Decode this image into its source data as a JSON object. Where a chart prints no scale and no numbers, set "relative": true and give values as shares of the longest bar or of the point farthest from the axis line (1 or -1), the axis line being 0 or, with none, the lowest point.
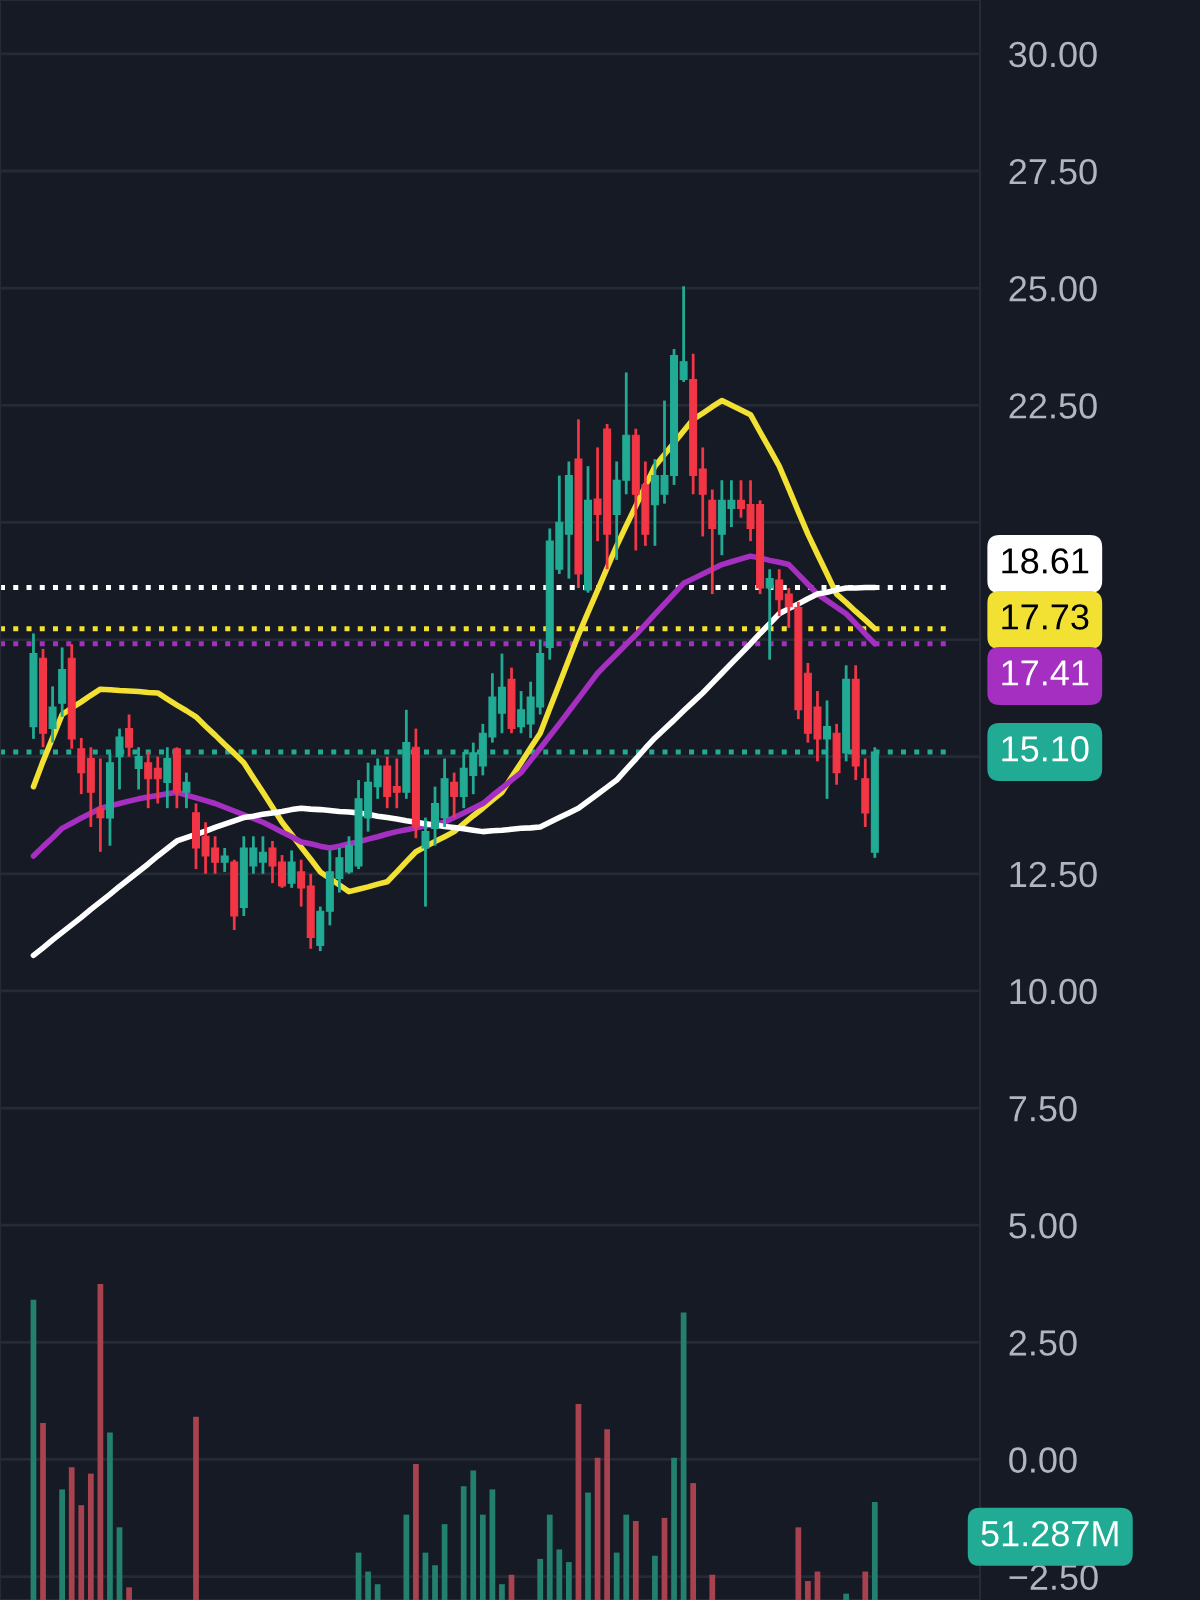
{
  "chart_data": [
    {
      "type": "candlestick",
      "categories": [
        null,
        null,
        null,
        null,
        null,
        null,
        null,
        null,
        null,
        null,
        null,
        null,
        null,
        null,
        null,
        null,
        null,
        null,
        null,
        null,
        null,
        null,
        null,
        null,
        null,
        null,
        null,
        null,
        null,
        null,
        null,
        null,
        null,
        null,
        null,
        null,
        null,
        null,
        null,
        null,
        null,
        null,
        null,
        null,
        null,
        null,
        null,
        null,
        null,
        null,
        null,
        null,
        null,
        null,
        null,
        null,
        null,
        null,
        null,
        null,
        null,
        null,
        null,
        null,
        null,
        null,
        null,
        null,
        null,
        null,
        null,
        null,
        null,
        null,
        null,
        null,
        null,
        null,
        null,
        null,
        null,
        null,
        null,
        null,
        null,
        null,
        null,
        null,
        null
      ],
      "ohlc": [
        [
          15.64,
          17.63,
          15.38,
          17.2
        ],
        [
          17.1,
          17.3,
          15.2,
          15.5
        ],
        [
          15.6,
          16.5,
          15.3,
          16.06
        ],
        [
          16.14,
          17.33,
          15.85,
          16.86
        ],
        [
          17.1,
          17.4,
          15.17,
          15.38
        ],
        [
          15.17,
          15.4,
          14.2,
          14.66
        ],
        [
          14.96,
          15.2,
          13.5,
          14.24
        ],
        [
          13.9,
          14.96,
          12.97,
          13.7
        ],
        [
          13.69,
          15.08,
          13.1,
          14.87
        ],
        [
          15.0,
          15.6,
          14.3,
          15.42
        ],
        [
          15.6,
          15.9,
          15.0,
          15.2
        ],
        [
          14.75,
          15.2,
          14.3,
          15.0
        ],
        [
          14.87,
          15.1,
          13.9,
          14.53
        ],
        [
          14.75,
          15.0,
          14.0,
          14.53
        ],
        [
          14.45,
          15.2,
          13.9,
          14.96
        ],
        [
          15.17,
          15.2,
          13.9,
          14.24
        ],
        [
          14.24,
          14.66,
          13.9,
          14.45
        ],
        [
          13.8,
          14.0,
          12.6,
          13.05
        ],
        [
          13.3,
          13.6,
          12.5,
          12.88
        ],
        [
          13.05,
          13.3,
          12.5,
          12.75
        ],
        [
          12.75,
          13.05,
          12.54,
          12.88
        ],
        [
          12.75,
          12.8,
          11.3,
          11.6
        ],
        [
          11.78,
          13.3,
          11.6,
          13.05
        ],
        [
          12.67,
          13.3,
          12.5,
          13.05
        ],
        [
          12.75,
          13.3,
          12.5,
          12.96
        ],
        [
          13.05,
          13.2,
          12.3,
          12.67
        ],
        [
          12.75,
          12.9,
          12.2,
          12.24
        ],
        [
          12.3,
          13.0,
          12.2,
          12.75
        ],
        [
          12.54,
          12.8,
          11.8,
          12.2
        ],
        [
          12.24,
          12.5,
          10.9,
          11.14
        ],
        [
          10.97,
          11.8,
          10.85,
          11.7
        ],
        [
          11.7,
          13.0,
          11.4,
          12.54
        ],
        [
          12.4,
          13.05,
          12.1,
          12.84
        ],
        [
          12.54,
          13.3,
          12.5,
          13.1
        ],
        [
          12.67,
          14.5,
          12.6,
          14.1
        ],
        [
          13.69,
          14.87,
          13.4,
          14.45
        ],
        [
          14.36,
          14.96,
          14.1,
          14.8
        ],
        [
          14.8,
          15.0,
          13.9,
          14.15
        ],
        [
          14.36,
          14.96,
          13.9,
          14.24
        ],
        [
          14.24,
          16.0,
          14.1,
          15.3
        ],
        [
          15.2,
          15.6,
          13.26,
          13.5
        ],
        [
          13.05,
          13.7,
          11.8,
          13.4
        ],
        [
          13.47,
          14.36,
          13.1,
          14.0
        ],
        [
          13.7,
          14.96,
          13.5,
          14.53
        ],
        [
          14.45,
          14.66,
          13.7,
          14.15
        ],
        [
          14.15,
          15.1,
          13.9,
          14.75
        ],
        [
          14.6,
          15.3,
          14.2,
          15.08
        ],
        [
          14.8,
          15.7,
          14.6,
          15.5
        ],
        [
          15.42,
          16.78,
          15.3,
          16.27
        ],
        [
          15.93,
          17.2,
          15.5,
          16.48
        ],
        [
          16.65,
          16.9,
          15.5,
          15.6
        ],
        [
          15.64,
          16.4,
          15.5,
          16.0
        ],
        [
          15.7,
          16.6,
          15.4,
          16.27
        ],
        [
          16.06,
          17.5,
          15.9,
          17.2
        ],
        [
          17.33,
          19.87,
          17.07,
          19.6
        ],
        [
          19.0,
          21.0,
          18.9,
          20.0
        ],
        [
          19.75,
          21.3,
          18.8,
          21.0
        ],
        [
          21.35,
          22.2,
          18.6,
          18.9
        ],
        [
          18.56,
          21.2,
          18.5,
          20.47
        ],
        [
          20.5,
          21.6,
          19.6,
          20.17
        ],
        [
          21.99,
          22.1,
          19.0,
          19.75
        ],
        [
          20.17,
          21.3,
          19.2,
          20.9
        ],
        [
          20.9,
          23.2,
          20.6,
          21.86
        ],
        [
          21.86,
          22.0,
          19.4,
          20.6
        ],
        [
          20.8,
          21.3,
          19.5,
          19.75
        ],
        [
          20.38,
          21.35,
          19.5,
          21.0
        ],
        [
          20.6,
          22.6,
          20.4,
          21.0
        ],
        [
          21.0,
          23.7,
          20.8,
          23.56
        ],
        [
          23.05,
          25.04,
          23.0,
          23.43
        ],
        [
          23.05,
          23.6,
          20.6,
          21.0
        ],
        [
          21.14,
          21.6,
          19.7,
          20.6
        ],
        [
          20.47,
          20.7,
          18.47,
          19.87
        ],
        [
          19.75,
          20.9,
          19.3,
          20.47
        ],
        [
          20.3,
          20.9,
          19.9,
          20.47
        ],
        [
          20.47,
          20.9,
          20.1,
          20.3
        ],
        [
          20.38,
          20.9,
          19.6,
          19.87
        ],
        [
          20.38,
          20.47,
          18.47,
          18.6
        ],
        [
          18.6,
          19.0,
          17.07,
          18.8
        ],
        [
          18.77,
          19.0,
          18.0,
          18.35
        ],
        [
          18.47,
          18.6,
          17.75,
          18.2
        ],
        [
          18.18,
          18.3,
          15.8,
          16.0
        ],
        [
          16.78,
          17.0,
          15.3,
          15.5
        ],
        [
          16.06,
          16.4,
          14.9,
          15.38
        ],
        [
          15.38,
          16.2,
          14.1,
          15.64
        ],
        [
          15.5,
          15.7,
          14.4,
          14.66
        ],
        [
          15.08,
          16.95,
          14.9,
          16.65
        ],
        [
          16.65,
          16.95,
          14.5,
          14.8
        ],
        [
          14.53,
          14.96,
          13.5,
          13.8
        ],
        [
          12.96,
          15.2,
          12.84,
          15.1
        ]
      ],
      "colors": [
        "#22ab94",
        "#f23645",
        "#22ab94",
        "#22ab94",
        "#f23645",
        "#f23645",
        "#f23645",
        "#f23645",
        "#22ab94",
        "#22ab94",
        "#f23645",
        "#22ab94",
        "#f23645",
        "#f23645",
        "#22ab94",
        "#f23645",
        "#22ab94",
        "#f23645",
        "#f23645",
        "#f23645",
        "#22ab94",
        "#f23645",
        "#22ab94",
        "#22ab94",
        "#22ab94",
        "#f23645",
        "#f23645",
        "#22ab94",
        "#f23645",
        "#f23645",
        "#22ab94",
        "#22ab94",
        "#22ab94",
        "#22ab94",
        "#22ab94",
        "#22ab94",
        "#22ab94",
        "#f23645",
        "#f23645",
        "#22ab94",
        "#f23645",
        "#22ab94",
        "#22ab94",
        "#22ab94",
        "#f23645",
        "#22ab94",
        "#22ab94",
        "#22ab94",
        "#22ab94",
        "#22ab94",
        "#f23645",
        "#22ab94",
        "#22ab94",
        "#22ab94",
        "#22ab94",
        "#22ab94",
        "#22ab94",
        "#f23645",
        "#22ab94",
        "#f23645",
        "#f23645",
        "#22ab94",
        "#22ab94",
        "#f23645",
        "#f23645",
        "#22ab94",
        "#22ab94",
        "#22ab94",
        "#22ab94",
        "#f23645",
        "#f23645",
        "#f23645",
        "#22ab94",
        "#22ab94",
        "#f23645",
        "#f23645",
        "#f23645",
        "#22ab94",
        "#f23645",
        "#f23645",
        "#f23645",
        "#f23645",
        "#f23645",
        "#22ab94",
        "#f23645",
        "#22ab94",
        "#f23645",
        "#f23645",
        "#22ab94"
      ],
      "series": [
        {
          "type": "line",
          "color": "#f2e033",
          "values": [
            14.36,
            14.9,
            15.4,
            15.9,
            16.04,
            16.17,
            16.31,
            16.44,
            16.43,
            16.41,
            16.4,
            16.39,
            16.37,
            16.36,
            16.23,
            16.1,
            15.98,
            15.85,
            15.65,
            15.46,
            15.26,
            15.07,
            14.87,
            14.55,
            14.24,
            13.92,
            13.6,
            13.34,
            13.07,
            12.81,
            12.54,
            12.4,
            12.26,
            12.12,
            12.17,
            12.22,
            12.28,
            12.33,
            12.54,
            12.76,
            12.97,
            13.08,
            13.19,
            13.29,
            13.4,
            13.57,
            13.74,
            13.9,
            14.07,
            14.24,
            14.56,
            14.87,
            15.19,
            15.5,
            16.03,
            16.55,
            17.08,
            17.6,
            18.08,
            18.55,
            19.03,
            19.5,
            19.93,
            20.35,
            20.78,
            21.2,
            21.45,
            21.7,
            21.95,
            22.2,
            22.33,
            22.47,
            22.6,
            22.5,
            22.4,
            22.3,
            21.93,
            21.57,
            21.2,
            20.72,
            20.23,
            19.75,
            19.32,
            18.9,
            18.47,
            18.29,
            18.1,
            17.92,
            17.73
          ]
        },
        {
          "type": "line",
          "color": "#a52fc0",
          "values": [
            12.88,
            13.08,
            13.27,
            13.47,
            13.58,
            13.69,
            13.79,
            13.9,
            13.95,
            14.0,
            14.05,
            14.1,
            14.14,
            14.17,
            14.21,
            14.24,
            14.18,
            14.12,
            14.06,
            14.0,
            13.92,
            13.84,
            13.76,
            13.68,
            13.6,
            13.5,
            13.39,
            13.29,
            13.18,
            13.14,
            13.09,
            13.05,
            13.09,
            13.14,
            13.18,
            13.24,
            13.29,
            13.35,
            13.4,
            13.44,
            13.48,
            13.52,
            13.56,
            13.6,
            13.7,
            13.8,
            13.9,
            14.0,
            14.17,
            14.33,
            14.5,
            14.66,
            14.92,
            15.18,
            15.44,
            15.7,
            15.97,
            16.24,
            16.51,
            16.78,
            16.99,
            17.19,
            17.4,
            17.6,
            17.82,
            18.04,
            18.26,
            18.48,
            18.7,
            18.8,
            18.9,
            19.0,
            19.1,
            19.16,
            19.22,
            19.28,
            19.24,
            19.19,
            19.15,
            19.1,
            18.89,
            18.68,
            18.47,
            18.33,
            18.19,
            18.05,
            17.84,
            17.62,
            17.41
          ]
        },
        {
          "type": "line",
          "color": "#ffffff",
          "values": [
            10.76,
            10.92,
            11.09,
            11.25,
            11.41,
            11.57,
            11.74,
            11.9,
            12.06,
            12.23,
            12.39,
            12.55,
            12.71,
            12.88,
            13.04,
            13.2,
            13.27,
            13.34,
            13.41,
            13.49,
            13.56,
            13.63,
            13.7,
            13.73,
            13.77,
            13.8,
            13.83,
            13.87,
            13.9,
            13.88,
            13.87,
            13.85,
            13.83,
            13.82,
            13.8,
            13.77,
            13.73,
            13.7,
            13.67,
            13.63,
            13.6,
            13.57,
            13.54,
            13.51,
            13.49,
            13.46,
            13.43,
            13.4,
            13.42,
            13.43,
            13.45,
            13.47,
            13.48,
            13.5,
            13.6,
            13.7,
            13.8,
            13.9,
            14.05,
            14.2,
            14.35,
            14.5,
            14.73,
            14.95,
            15.18,
            15.4,
            15.59,
            15.78,
            15.98,
            16.17,
            16.36,
            16.57,
            16.78,
            16.99,
            17.2,
            17.41,
            17.63,
            17.84,
            18.05,
            18.16,
            18.26,
            18.37,
            18.47,
            18.51,
            18.56,
            18.6,
            18.6,
            18.61,
            18.61
          ]
        }
      ],
      "ylim": [
        -3.0,
        31.15
      ],
      "yticks": [
        {
          "value": 30,
          "label": "30.00"
        },
        {
          "value": 27.5,
          "label": "27.50"
        },
        {
          "value": 25,
          "label": "25.00"
        },
        {
          "value": 22.5,
          "label": "22.50"
        },
        {
          "value": 20,
          "label": null
        },
        {
          "value": 17.5,
          "label": null
        },
        {
          "value": 15,
          "label": null
        },
        {
          "value": 12.5,
          "label": "12.50"
        },
        {
          "value": 10,
          "label": "10.00"
        },
        {
          "value": 7.5,
          "label": "7.50"
        },
        {
          "value": 5,
          "label": "5.00"
        },
        {
          "value": 2.5,
          "label": "2.50"
        },
        {
          "value": 0,
          "label": "0.00"
        },
        {
          "value": -2.5,
          "label": "−2.50"
        }
      ],
      "ref_lines": [
        {
          "axis": "y",
          "value": 18.61,
          "label": "18.61",
          "color": "#ffffff",
          "line_style": "dotted"
        },
        {
          "axis": "y",
          "value": 17.73,
          "label": "17.73",
          "color": "#f2e033",
          "line_style": "dotted"
        },
        {
          "axis": "y",
          "value": 17.41,
          "label": "17.41",
          "color": "#a52fc0",
          "line_style": "dotted"
        },
        {
          "axis": "y",
          "value": 15.1,
          "label": "15.10",
          "color": "#22ab94",
          "line_style": "dotted"
        }
      ],
      "grid": "y",
      "tick_labels": "y"
    },
    {
      "type": "bar",
      "relative": true,
      "categories": [
        null,
        null,
        null,
        null,
        null,
        null,
        null,
        null,
        null,
        null,
        null,
        null,
        null,
        null,
        null,
        null,
        null,
        null,
        null,
        null,
        null,
        null,
        null,
        null,
        null,
        null,
        null,
        null,
        null,
        null,
        null,
        null,
        null,
        null,
        null,
        null,
        null,
        null,
        null,
        null,
        null,
        null,
        null,
        null,
        null,
        null,
        null,
        null,
        null,
        null,
        null,
        null,
        null,
        null,
        null,
        null,
        null,
        null,
        null,
        null,
        null,
        null,
        null,
        null,
        null,
        null,
        null,
        null,
        null,
        null,
        null,
        null,
        null,
        null,
        null,
        null,
        null,
        null,
        null,
        null,
        null,
        null,
        null,
        null,
        null,
        null,
        null,
        null,
        null
      ],
      "values": [
        0.95,
        0.56,
        0,
        0.35,
        0.42,
        0.3,
        0.4,
        1,
        0.53,
        0.23,
        0.04,
        0,
        0,
        0,
        0,
        0,
        0,
        0.58,
        0,
        0,
        0,
        0,
        0,
        0,
        0,
        0,
        0,
        0,
        0,
        0,
        0,
        0,
        0,
        0,
        0.15,
        0.09,
        0.05,
        0,
        0,
        0.27,
        0.43,
        0.15,
        0.11,
        0.24,
        0,
        0.36,
        0.41,
        0.27,
        0.35,
        0.05,
        0.08,
        0,
        0,
        0.13,
        0.27,
        0.16,
        0.12,
        0.62,
        0.34,
        0.45,
        0.54,
        0.15,
        0.27,
        0.25,
        0,
        0.14,
        0.26,
        0.45,
        0.91,
        0.37,
        0,
        0.08,
        0,
        0,
        0,
        0,
        0,
        0,
        0,
        0,
        0.23,
        0.06,
        0.09,
        0,
        0,
        0.02,
        0,
        0.09,
        0.31
      ],
      "colors": [
        "#23806f",
        "#a8424f",
        "#23806f",
        "#23806f",
        "#a8424f",
        "#a8424f",
        "#a8424f",
        "#a8424f",
        "#23806f",
        "#23806f",
        "#a8424f",
        "#23806f",
        "#a8424f",
        "#a8424f",
        "#23806f",
        "#a8424f",
        "#23806f",
        "#a8424f",
        "#a8424f",
        "#a8424f",
        "#23806f",
        "#a8424f",
        "#23806f",
        "#23806f",
        "#23806f",
        "#a8424f",
        "#a8424f",
        "#23806f",
        "#a8424f",
        "#a8424f",
        "#23806f",
        "#23806f",
        "#23806f",
        "#23806f",
        "#23806f",
        "#23806f",
        "#23806f",
        "#a8424f",
        "#a8424f",
        "#23806f",
        "#a8424f",
        "#23806f",
        "#23806f",
        "#23806f",
        "#a8424f",
        "#23806f",
        "#23806f",
        "#23806f",
        "#23806f",
        "#23806f",
        "#a8424f",
        "#23806f",
        "#23806f",
        "#23806f",
        "#23806f",
        "#23806f",
        "#23806f",
        "#a8424f",
        "#23806f",
        "#a8424f",
        "#a8424f",
        "#23806f",
        "#23806f",
        "#a8424f",
        "#a8424f",
        "#23806f",
        "#a8424f",
        "#23806f",
        "#23806f",
        "#a8424f",
        "#a8424f",
        "#a8424f",
        "#23806f",
        "#23806f",
        "#a8424f",
        "#a8424f",
        "#a8424f",
        "#23806f",
        "#a8424f",
        "#a8424f",
        "#a8424f",
        "#a8424f",
        "#a8424f",
        "#23806f",
        "#a8424f",
        "#23806f",
        "#a8424f",
        "#a8424f",
        "#23806f"
      ],
      "annotations": [
        "51.287M"
      ]
    }
  ]
}
